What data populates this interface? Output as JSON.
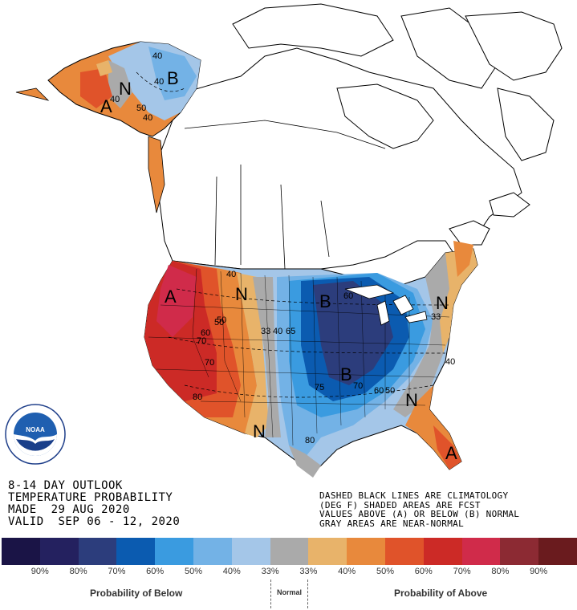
{
  "map": {
    "labels": {
      "a_west": "A",
      "a_alaska": "A",
      "a_florida": "A",
      "b_alaska": "B",
      "b_midwest": "B",
      "b_central": "B",
      "n_alaska": "N",
      "n_rockies": "N",
      "n_northeast": "N",
      "n_southeast": "N",
      "n_texas": "N"
    },
    "contours": {
      "c1": "40",
      "c2": "40",
      "c3": "50",
      "c4": "40",
      "c5": "40",
      "c6": "50",
      "c7": "60",
      "c8": "70",
      "c9": "70",
      "c10": "80",
      "c11": "40",
      "c12": "50",
      "c13": "33",
      "c14": "40",
      "c15": "65",
      "c16": "60",
      "c17": "75",
      "c18": "70",
      "c19": "60",
      "c20": "50",
      "c21": "33",
      "c22": "40",
      "c23": "80"
    }
  },
  "logo": {
    "text": "NOAA",
    "ring": "NATIONAL OCEANIC AND ATMOSPHERIC ADMINISTRATION · U.S. DEPARTMENT OF COMMERCE"
  },
  "header": {
    "line1": "8-14 DAY OUTLOOK",
    "line2": "TEMPERATURE PROBABILITY",
    "line3": "MADE  29 AUG 2020",
    "line4": "VALID  SEP 06 - 12, 2020"
  },
  "notes": {
    "line1": "DASHED BLACK LINES ARE CLIMATOLOGY",
    "line2": "(DEG F) SHADED AREAS ARE FCST",
    "line3": "VALUES ABOVE (A) OR BELOW (B) NORMAL",
    "line4": "GRAY AREAS ARE NEAR-NORMAL"
  },
  "legend": {
    "colors": [
      "#1a1446",
      "#24215f",
      "#2c3d7c",
      "#0b5bb0",
      "#3a9be0",
      "#73b2e6",
      "#a4c6e8",
      "#aaaaaa",
      "#e8b36a",
      "#e8893c",
      "#e0532a",
      "#cc2a26",
      "#d02b4a",
      "#8c2a33",
      "#6a1b1e"
    ],
    "ticks": [
      "90%",
      "80%",
      "70%",
      "60%",
      "50%",
      "40%",
      "33%",
      "33%",
      "40%",
      "50%",
      "60%",
      "70%",
      "80%",
      "90%"
    ],
    "below_caption": "Probability of Below",
    "normal_caption": "Normal",
    "above_caption": "Probability of Above"
  }
}
